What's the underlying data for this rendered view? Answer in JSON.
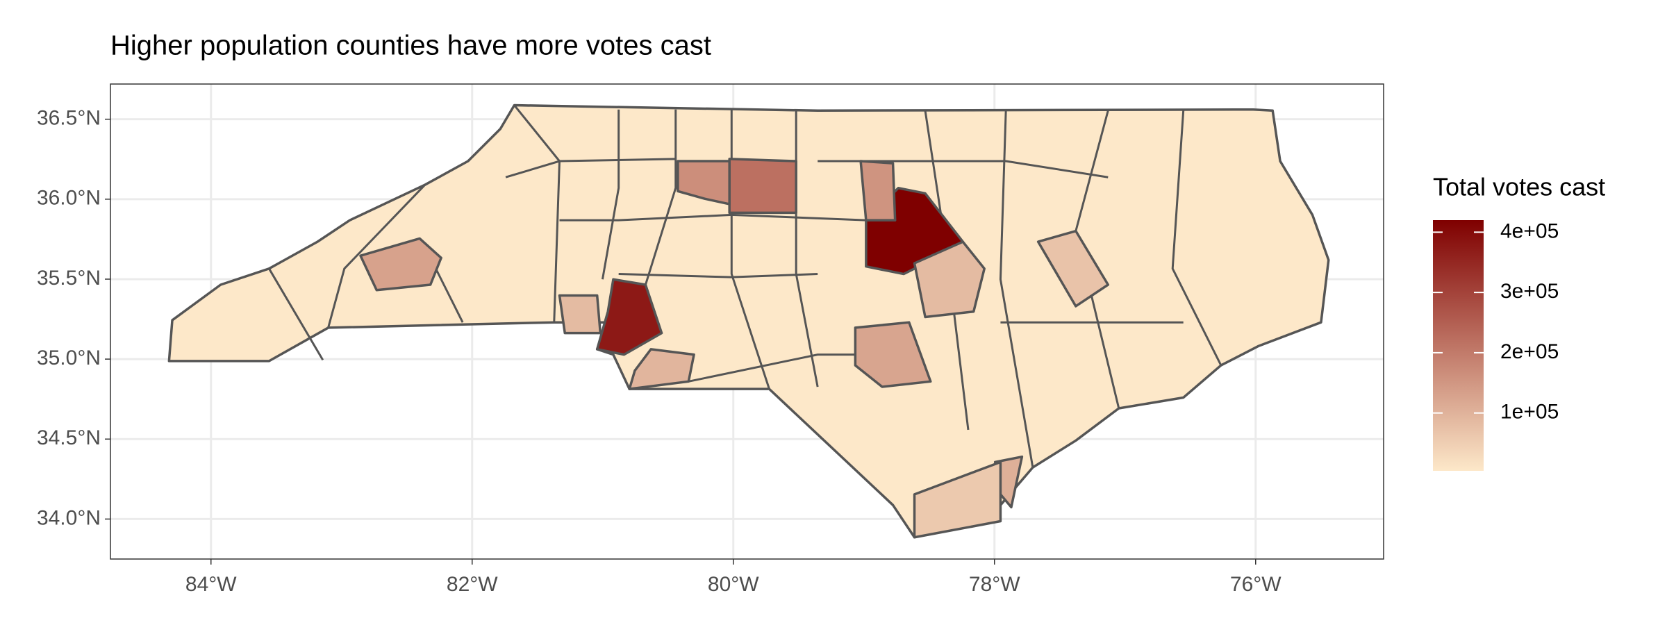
{
  "chart_data": {
    "type": "choropleth",
    "title": "Higher population counties have more votes cast",
    "xlim": [
      -84.77,
      -75.02
    ],
    "ylim": [
      33.75,
      36.72
    ],
    "xticks": [
      {
        "value": -84,
        "label": "84°W"
      },
      {
        "value": -82,
        "label": "82°W"
      },
      {
        "value": -80,
        "label": "80°W"
      },
      {
        "value": -78,
        "label": "78°W"
      },
      {
        "value": -76,
        "label": "76°W"
      }
    ],
    "yticks": [
      {
        "value": 34.0,
        "label": "34.0°N"
      },
      {
        "value": 34.5,
        "label": "34.5°N"
      },
      {
        "value": 35.0,
        "label": "35.0°N"
      },
      {
        "value": 35.5,
        "label": "35.5°N"
      },
      {
        "value": 36.0,
        "label": "36.0°N"
      },
      {
        "value": 36.5,
        "label": "36.5°N"
      }
    ],
    "grid": true,
    "values": [
      420000,
      375000,
      220000,
      165000,
      155000,
      130000,
      125000,
      85000,
      95000,
      105000,
      85000,
      70000,
      60000
    ],
    "legend_title": "Total votes cast",
    "fill_lim": [
      4000,
      420000
    ],
    "fill_colors": [
      "#fde8c9",
      "#7f0000"
    ],
    "legend_ticks": [
      {
        "value": 100000,
        "label": "1e+05"
      },
      {
        "value": 200000,
        "label": "2e+05"
      },
      {
        "value": 300000,
        "label": "3e+05"
      },
      {
        "value": 400000,
        "label": "4e+05"
      }
    ]
  }
}
